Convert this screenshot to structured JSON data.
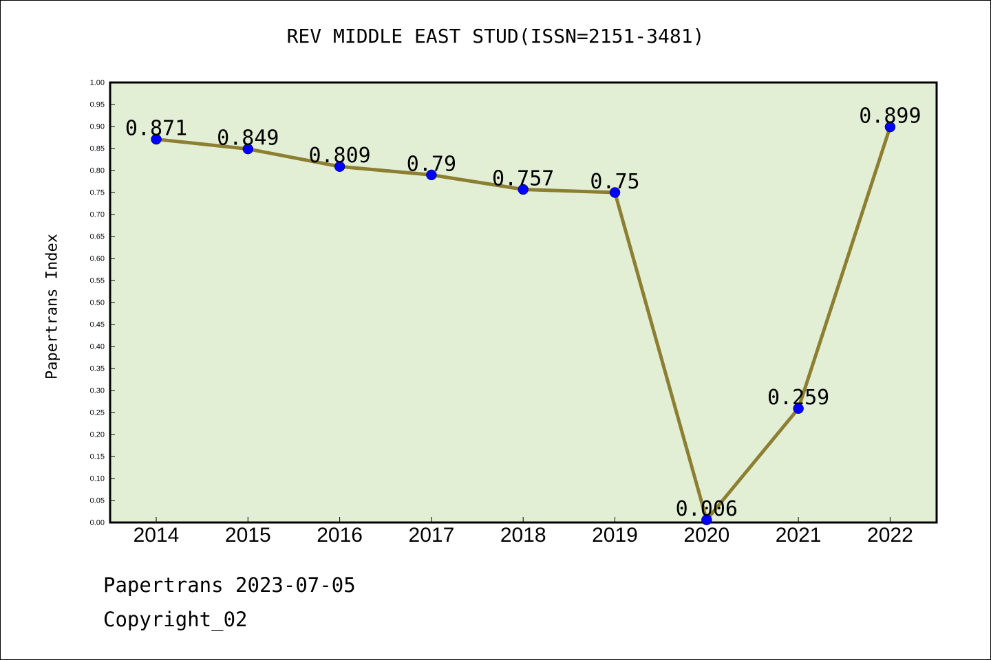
{
  "chart_data": {
    "type": "line",
    "title": "REV MIDDLE EAST STUD(ISSN=2151-3481)",
    "xlabel": "",
    "ylabel": "Papertrans Index",
    "x": [
      "2014",
      "2015",
      "2016",
      "2017",
      "2018",
      "2019",
      "2020",
      "2021",
      "2022"
    ],
    "series": [
      {
        "values": [
          0.871,
          0.849,
          0.809,
          0.79,
          0.757,
          0.75,
          0.006,
          0.259,
          0.899
        ],
        "data_labels": [
          "0.871",
          "0.849",
          "0.809",
          "0.79",
          "0.757",
          "0.75",
          "0.006",
          "0.259",
          "0.899"
        ],
        "line_color": "#8c7f32",
        "marker_color": "#0000ff"
      }
    ],
    "ylim": [
      0,
      1.0
    ],
    "yticks": [
      "0.00",
      "0.05",
      "0.10",
      "0.15",
      "0.20",
      "0.25",
      "0.30",
      "0.35",
      "0.40",
      "0.45",
      "0.50",
      "0.55",
      "0.60",
      "0.65",
      "0.70",
      "0.75",
      "0.80",
      "0.85",
      "0.90",
      "0.95",
      "1.00"
    ],
    "plot_background": "#e2efd5",
    "grid": false,
    "legend": "none"
  },
  "footer": {
    "line1": "Papertrans 2023-07-05",
    "line2": "Copyright_02"
  }
}
